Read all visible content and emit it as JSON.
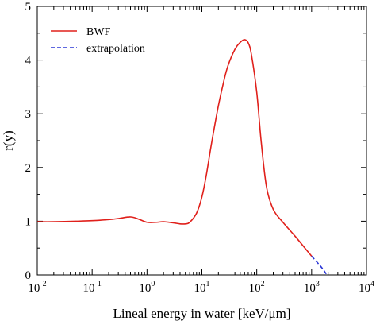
{
  "chart_data": {
    "type": "line",
    "xlabel": "Lineal energy in water [keV/μm]",
    "ylabel": "r(y)",
    "xscale": "log",
    "xlim": [
      0.01,
      10000
    ],
    "ylim": [
      0,
      5
    ],
    "x_ticks": [
      {
        "base": "10",
        "exp": "-2",
        "value": 0.01
      },
      {
        "base": "10",
        "exp": "-1",
        "value": 0.1
      },
      {
        "base": "10",
        "exp": "0",
        "value": 1
      },
      {
        "base": "10",
        "exp": "1",
        "value": 10
      },
      {
        "base": "10",
        "exp": "2",
        "value": 100
      },
      {
        "base": "10",
        "exp": "3",
        "value": 1000
      },
      {
        "base": "10",
        "exp": "4",
        "value": 10000
      }
    ],
    "y_ticks": [
      "0",
      "1",
      "2",
      "3",
      "4",
      "5"
    ],
    "grid": false,
    "legend_position": "top-left",
    "series": [
      {
        "name": "BWF",
        "color": "#e0201b",
        "style": "solid",
        "x": [
          0.01,
          0.02,
          0.05,
          0.1,
          0.2,
          0.3,
          0.5,
          0.7,
          1,
          1.5,
          2,
          3,
          4,
          5,
          6,
          8,
          10,
          12,
          15,
          20,
          25,
          30,
          40,
          50,
          60,
          70,
          80,
          100,
          120,
          150,
          200,
          300,
          500,
          1000
        ],
        "y": [
          0.99,
          0.99,
          1.0,
          1.01,
          1.03,
          1.05,
          1.08,
          1.04,
          0.98,
          0.98,
          0.99,
          0.97,
          0.95,
          0.95,
          0.98,
          1.15,
          1.45,
          1.85,
          2.45,
          3.15,
          3.6,
          3.9,
          4.2,
          4.33,
          4.38,
          4.32,
          4.1,
          3.4,
          2.5,
          1.65,
          1.22,
          0.98,
          0.72,
          0.35
        ]
      },
      {
        "name": "extrapolation",
        "color": "#2a36d6",
        "style": "dashed",
        "x": [
          1000,
          1300,
          1600,
          1900
        ],
        "y": [
          0.35,
          0.22,
          0.11,
          0.0
        ]
      }
    ]
  }
}
